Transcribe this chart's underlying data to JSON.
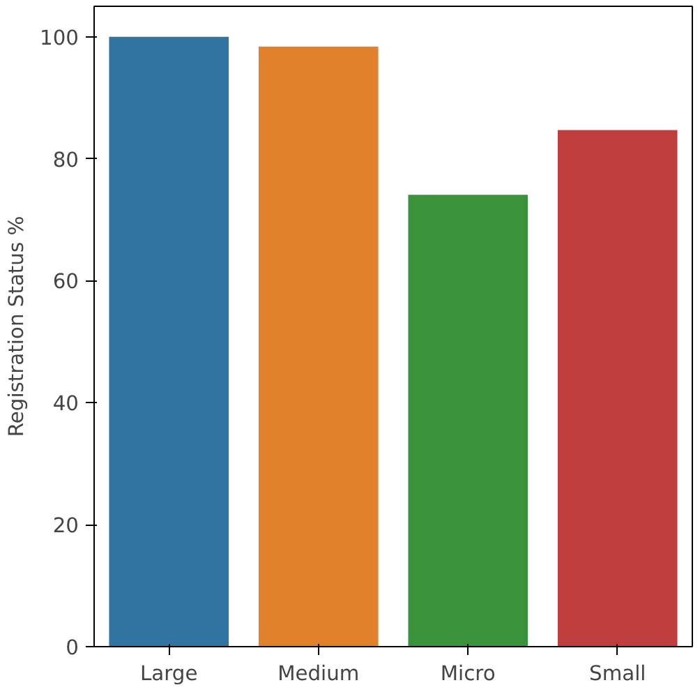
{
  "chart_data": {
    "type": "bar",
    "ylabel": "Registration Status %",
    "categories": [
      "Large",
      "Medium",
      "Micro",
      "Small"
    ],
    "values": [
      100,
      98.4,
      74.1,
      84.7
    ],
    "colors": [
      "#3274a1",
      "#e1812c",
      "#3a923a",
      "#c03d3e"
    ],
    "ylim": [
      0,
      105
    ],
    "yticks": [
      0,
      20,
      40,
      60,
      80,
      100
    ],
    "grid": false
  }
}
